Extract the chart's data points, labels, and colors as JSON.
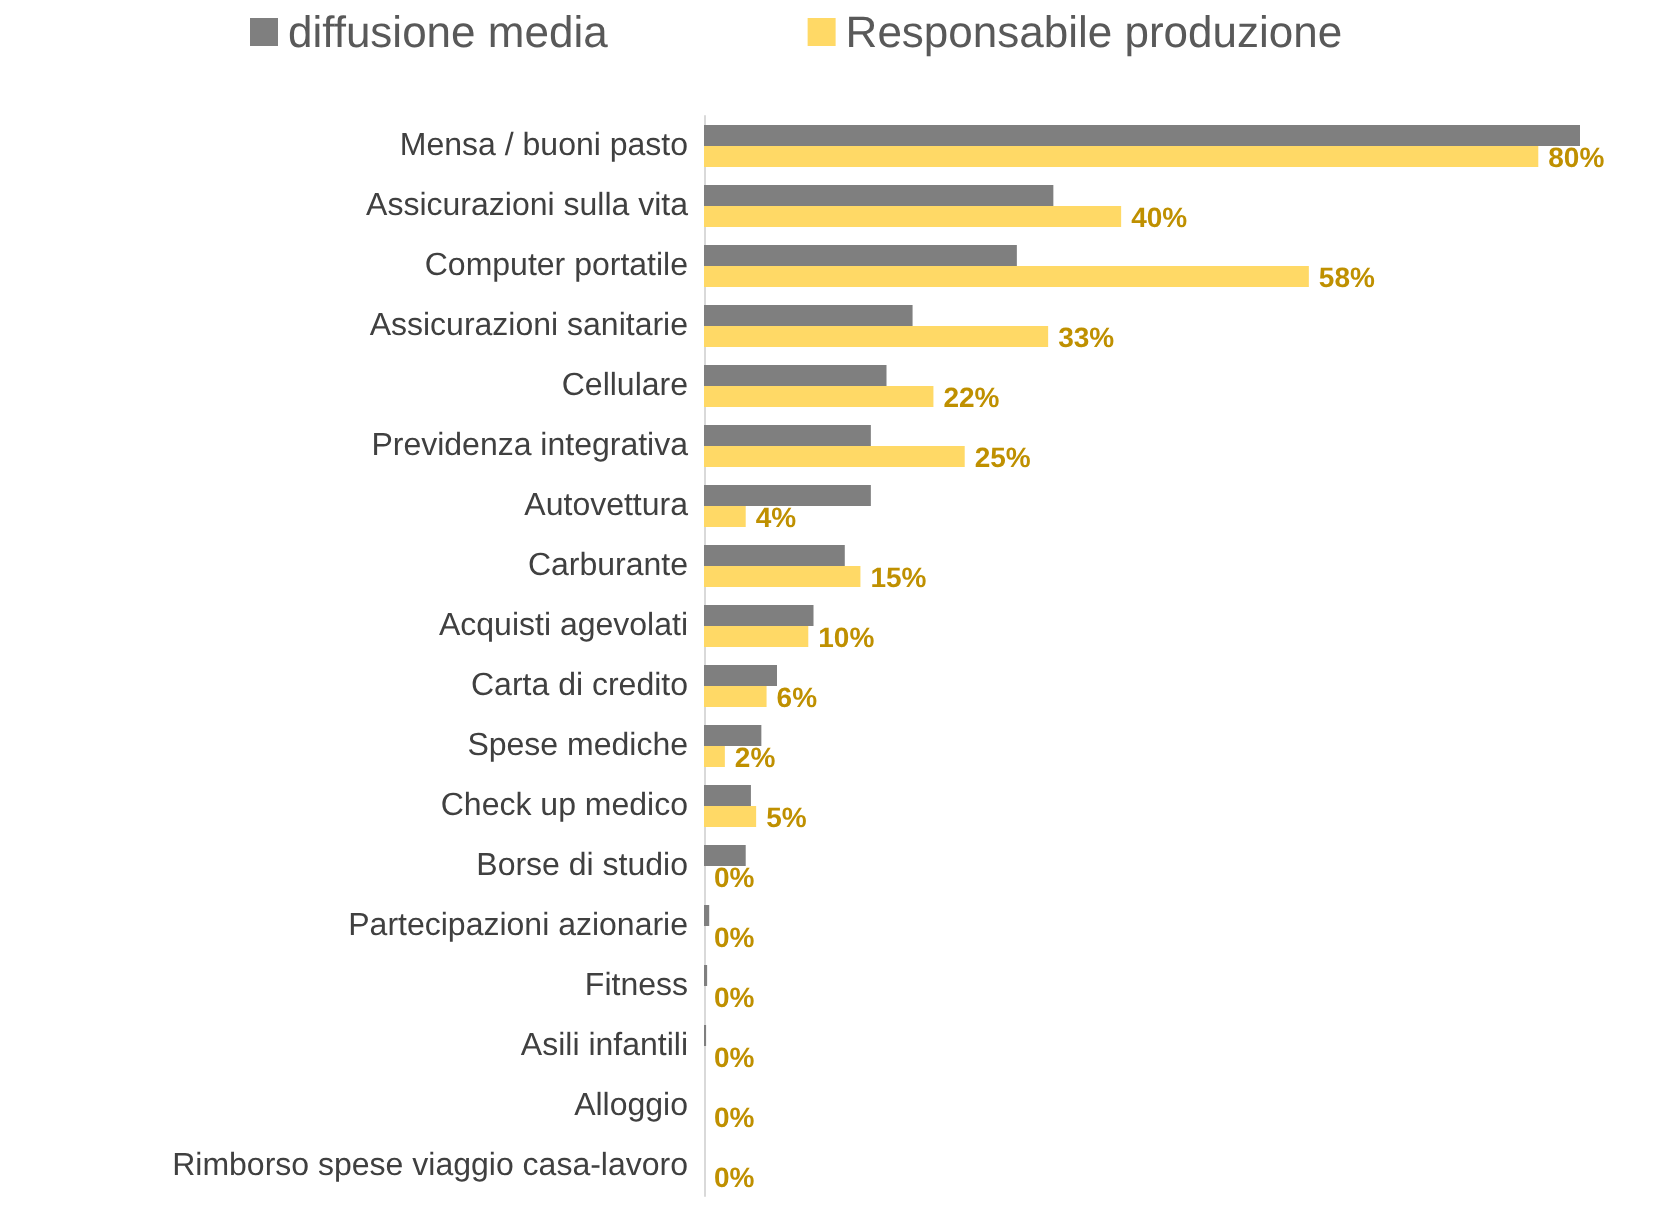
{
  "chart_data": {
    "type": "bar",
    "orientation": "horizontal",
    "legend": "top",
    "tick_labels": "y",
    "grid": false,
    "categories": [
      "Mensa / buoni pasto",
      "Assicurazioni sulla vita",
      "Computer portatile",
      "Assicurazioni sanitarie",
      "Cellulare",
      "Previdenza integrativa",
      "Autovettura",
      "Carburante",
      "Acquisti agevolati",
      "Carta di credito",
      "Spese mediche",
      "Check up medico",
      "Borse di studio",
      "Partecipazioni azionarie",
      "Fitness",
      "Asili infantili",
      "Alloggio",
      "Rimborso spese viaggio casa-lavoro"
    ],
    "series": [
      {
        "name": "diffusione media",
        "color": "#7f7f7f",
        "values": [
          84,
          33.5,
          30,
          20,
          17.5,
          16,
          16,
          13.5,
          10.5,
          7,
          5.5,
          4.5,
          4,
          0.5,
          0.3,
          0.2,
          0,
          0
        ]
      },
      {
        "name": "Responsabile produzione",
        "color": "#ffd966",
        "values": [
          80,
          40,
          58,
          33,
          22,
          25,
          4,
          15,
          10,
          6,
          2,
          5,
          0,
          0,
          0,
          0,
          0,
          0
        ],
        "value_labels": [
          "80%",
          "40%",
          "58%",
          "33%",
          "22%",
          "25%",
          "4%",
          "15%",
          "10%",
          "6%",
          "2%",
          "5%",
          "0%",
          "0%",
          "0%",
          "0%",
          "0%",
          "0%"
        ]
      }
    ]
  }
}
